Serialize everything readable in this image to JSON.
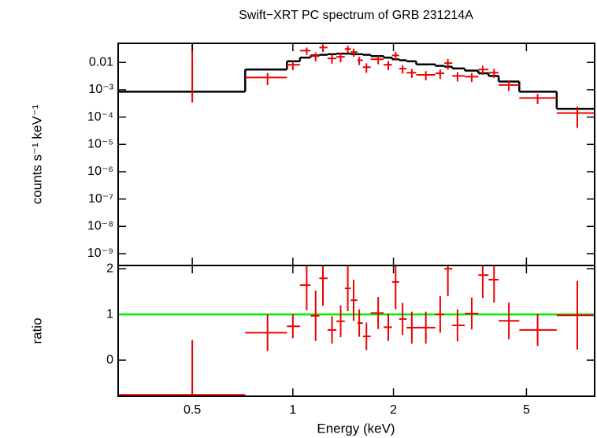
{
  "chart_data": [
    {
      "type": "errorbar",
      "title": "Swift−XRT PC spectrum of GRB 231214A",
      "ylabel": "counts s⁻¹ keV⁻¹",
      "xlog": true,
      "xlim": [
        0.3,
        8
      ],
      "ylog": true,
      "ylim": [
        3.7e-10,
        0.05
      ],
      "yticks": [
        0.01,
        {
          "value": 0.001,
          "label": "10⁻³"
        },
        {
          "value": 0.0001,
          "label": "10⁻⁴"
        },
        {
          "value": 1e-05,
          "label": "10⁻⁵"
        },
        {
          "value": 1e-06,
          "label": "10⁻⁶"
        },
        {
          "value": 1e-07,
          "label": "10⁻⁷"
        },
        {
          "value": 1e-08,
          "label": "10⁻⁸"
        },
        {
          "value": 1e-09,
          "label": "10⁻⁹"
        }
      ],
      "bins": [
        0.3,
        0.72,
        0.96,
        1.05,
        1.13,
        1.2,
        1.27,
        1.35,
        1.43,
        1.49,
        1.56,
        1.62,
        1.71,
        1.87,
        1.98,
        2.08,
        2.19,
        2.34,
        2.67,
        2.84,
        3.0,
        3.27,
        3.59,
        3.85,
        4.13,
        4.76,
        6.16,
        8
      ],
      "x": [
        0.5,
        0.84,
        1.0,
        1.1,
        1.17,
        1.23,
        1.31,
        1.39,
        1.46,
        1.52,
        1.58,
        1.66,
        1.8,
        1.93,
        2.03,
        2.13,
        2.27,
        2.5,
        2.76,
        2.91,
        3.11,
        3.43,
        3.7,
        4.0,
        4.43,
        5.4,
        7.1
      ],
      "values": [
        0,
        0.0028,
        0.0082,
        0.027,
        0.017,
        0.035,
        0.014,
        0.016,
        0.031,
        0.024,
        0.012,
        0.0067,
        0.013,
        0.0082,
        0.018,
        0.0059,
        0.0042,
        0.0035,
        0.004,
        0.0094,
        0.0032,
        0.003,
        0.0055,
        0.0042,
        0.0015,
        0.0005,
        0.00014
      ],
      "errors": [
        0.00034,
        0.0013,
        0.003,
        0.008,
        0.006,
        0.011,
        0.005,
        0.006,
        0.01,
        0.008,
        0.004,
        0.0025,
        0.0045,
        0.003,
        0.006,
        0.002,
        0.0015,
        0.0013,
        0.0015,
        0.004,
        0.0012,
        0.0011,
        0.002,
        0.0015,
        0.0006,
        0.0002,
        0.0001
      ],
      "color": "#ee0000",
      "model": {
        "color": "#000000",
        "values": [
          0.00085,
          0.0055,
          0.011,
          0.015,
          0.018,
          0.019,
          0.02,
          0.021,
          0.021,
          0.02,
          0.02,
          0.019,
          0.017,
          0.015,
          0.013,
          0.012,
          0.011,
          0.0085,
          0.0075,
          0.007,
          0.006,
          0.005,
          0.004,
          0.0032,
          0.002,
          0.00085,
          0.0002
        ]
      }
    },
    {
      "type": "errorbar",
      "ylabel": "ratio",
      "xlabel": "Energy (keV)",
      "xlog": true,
      "xlim": [
        0.3,
        8
      ],
      "xticks": [
        0.5,
        1,
        2,
        5
      ],
      "ylim": [
        -0.79,
        2.07
      ],
      "yticks": [
        0,
        1,
        2
      ],
      "bins": [
        0.3,
        0.72,
        0.96,
        1.05,
        1.13,
        1.2,
        1.27,
        1.35,
        1.43,
        1.49,
        1.56,
        1.62,
        1.71,
        1.87,
        1.98,
        2.08,
        2.19,
        2.34,
        2.67,
        2.84,
        3.0,
        3.27,
        3.59,
        3.85,
        4.13,
        4.76,
        6.16,
        8
      ],
      "x": [
        0.5,
        0.84,
        1.0,
        1.1,
        1.17,
        1.23,
        1.31,
        1.39,
        1.46,
        1.52,
        1.58,
        1.66,
        1.8,
        1.93,
        2.03,
        2.13,
        2.27,
        2.5,
        2.76,
        2.91,
        3.11,
        3.43,
        3.7,
        4.0,
        4.43,
        5.4,
        7.1
      ],
      "values": [
        -0.76,
        0.6,
        0.74,
        1.64,
        0.97,
        1.79,
        0.66,
        0.85,
        1.57,
        1.31,
        0.81,
        0.52,
        1.03,
        0.72,
        1.71,
        0.9,
        0.71,
        0.71,
        1.0,
        2.0,
        0.76,
        1.02,
        1.86,
        1.76,
        0.86,
        0.66,
        0.98
      ],
      "errors": [
        1.2,
        0.4,
        0.26,
        0.55,
        0.55,
        0.6,
        0.3,
        0.35,
        0.5,
        0.45,
        0.3,
        0.3,
        0.35,
        0.3,
        0.6,
        0.35,
        0.35,
        0.35,
        0.4,
        0.6,
        0.35,
        0.35,
        0.5,
        0.5,
        0.4,
        0.35,
        0.75
      ],
      "color": "#ee0000",
      "reference_line": {
        "value": 1,
        "color": "#00ee00"
      }
    }
  ]
}
